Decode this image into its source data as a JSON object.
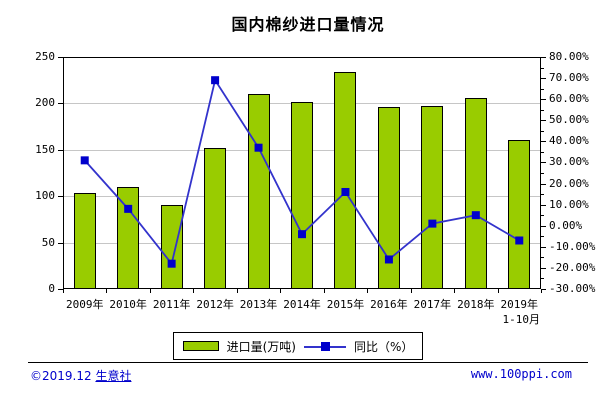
{
  "chart_data": {
    "type": "bar+line",
    "title": "国内棉纱进口量情况",
    "categories": [
      "2009年",
      "2010年",
      "2011年",
      "2012年",
      "2013年",
      "2014年",
      "2015年",
      "2016年",
      "2017年",
      "2018年",
      "2019年"
    ],
    "last_category_subline": "1-10月",
    "series": [
      {
        "name": "进口量(万吨)",
        "type": "bar",
        "axis": "left",
        "color": "#99CC00",
        "values": [
          103,
          110,
          90,
          152,
          210,
          201,
          234,
          196,
          197,
          206,
          161
        ]
      },
      {
        "name": "同比（%）",
        "type": "line",
        "axis": "right",
        "color": "#3333CC",
        "marker_color": "#0000CC",
        "values": [
          31,
          8,
          -18,
          69,
          37,
          -4,
          16,
          -16,
          1,
          5,
          -7
        ]
      }
    ],
    "left_axis": {
      "min": 0,
      "max": 250,
      "step": 50,
      "tick_labels_top_down": [
        "250",
        "200",
        "150",
        "100",
        "50",
        "0"
      ]
    },
    "right_axis": {
      "min": -30,
      "max": 80,
      "step": 10,
      "tick_labels_top_down": [
        "80.00%",
        "70.00%",
        "60.00%",
        "50.00%",
        "40.00%",
        "30.00%",
        "20.00%",
        "10.00%",
        "0.00%",
        "-10.00%",
        "-20.00%",
        "-30.00%"
      ]
    },
    "grid": true,
    "legend_position": "bottom",
    "colors": {
      "grid": "#C6C6C6",
      "axis": "#000000",
      "background": "#FFFFFF"
    }
  },
  "legend": {
    "bar_label": "进口量(万吨)",
    "line_label": "同比（%）"
  },
  "footer": {
    "copyright_prefix": "©2019.12 ",
    "site_name": "生意社",
    "url": "www.100ppi.com"
  }
}
